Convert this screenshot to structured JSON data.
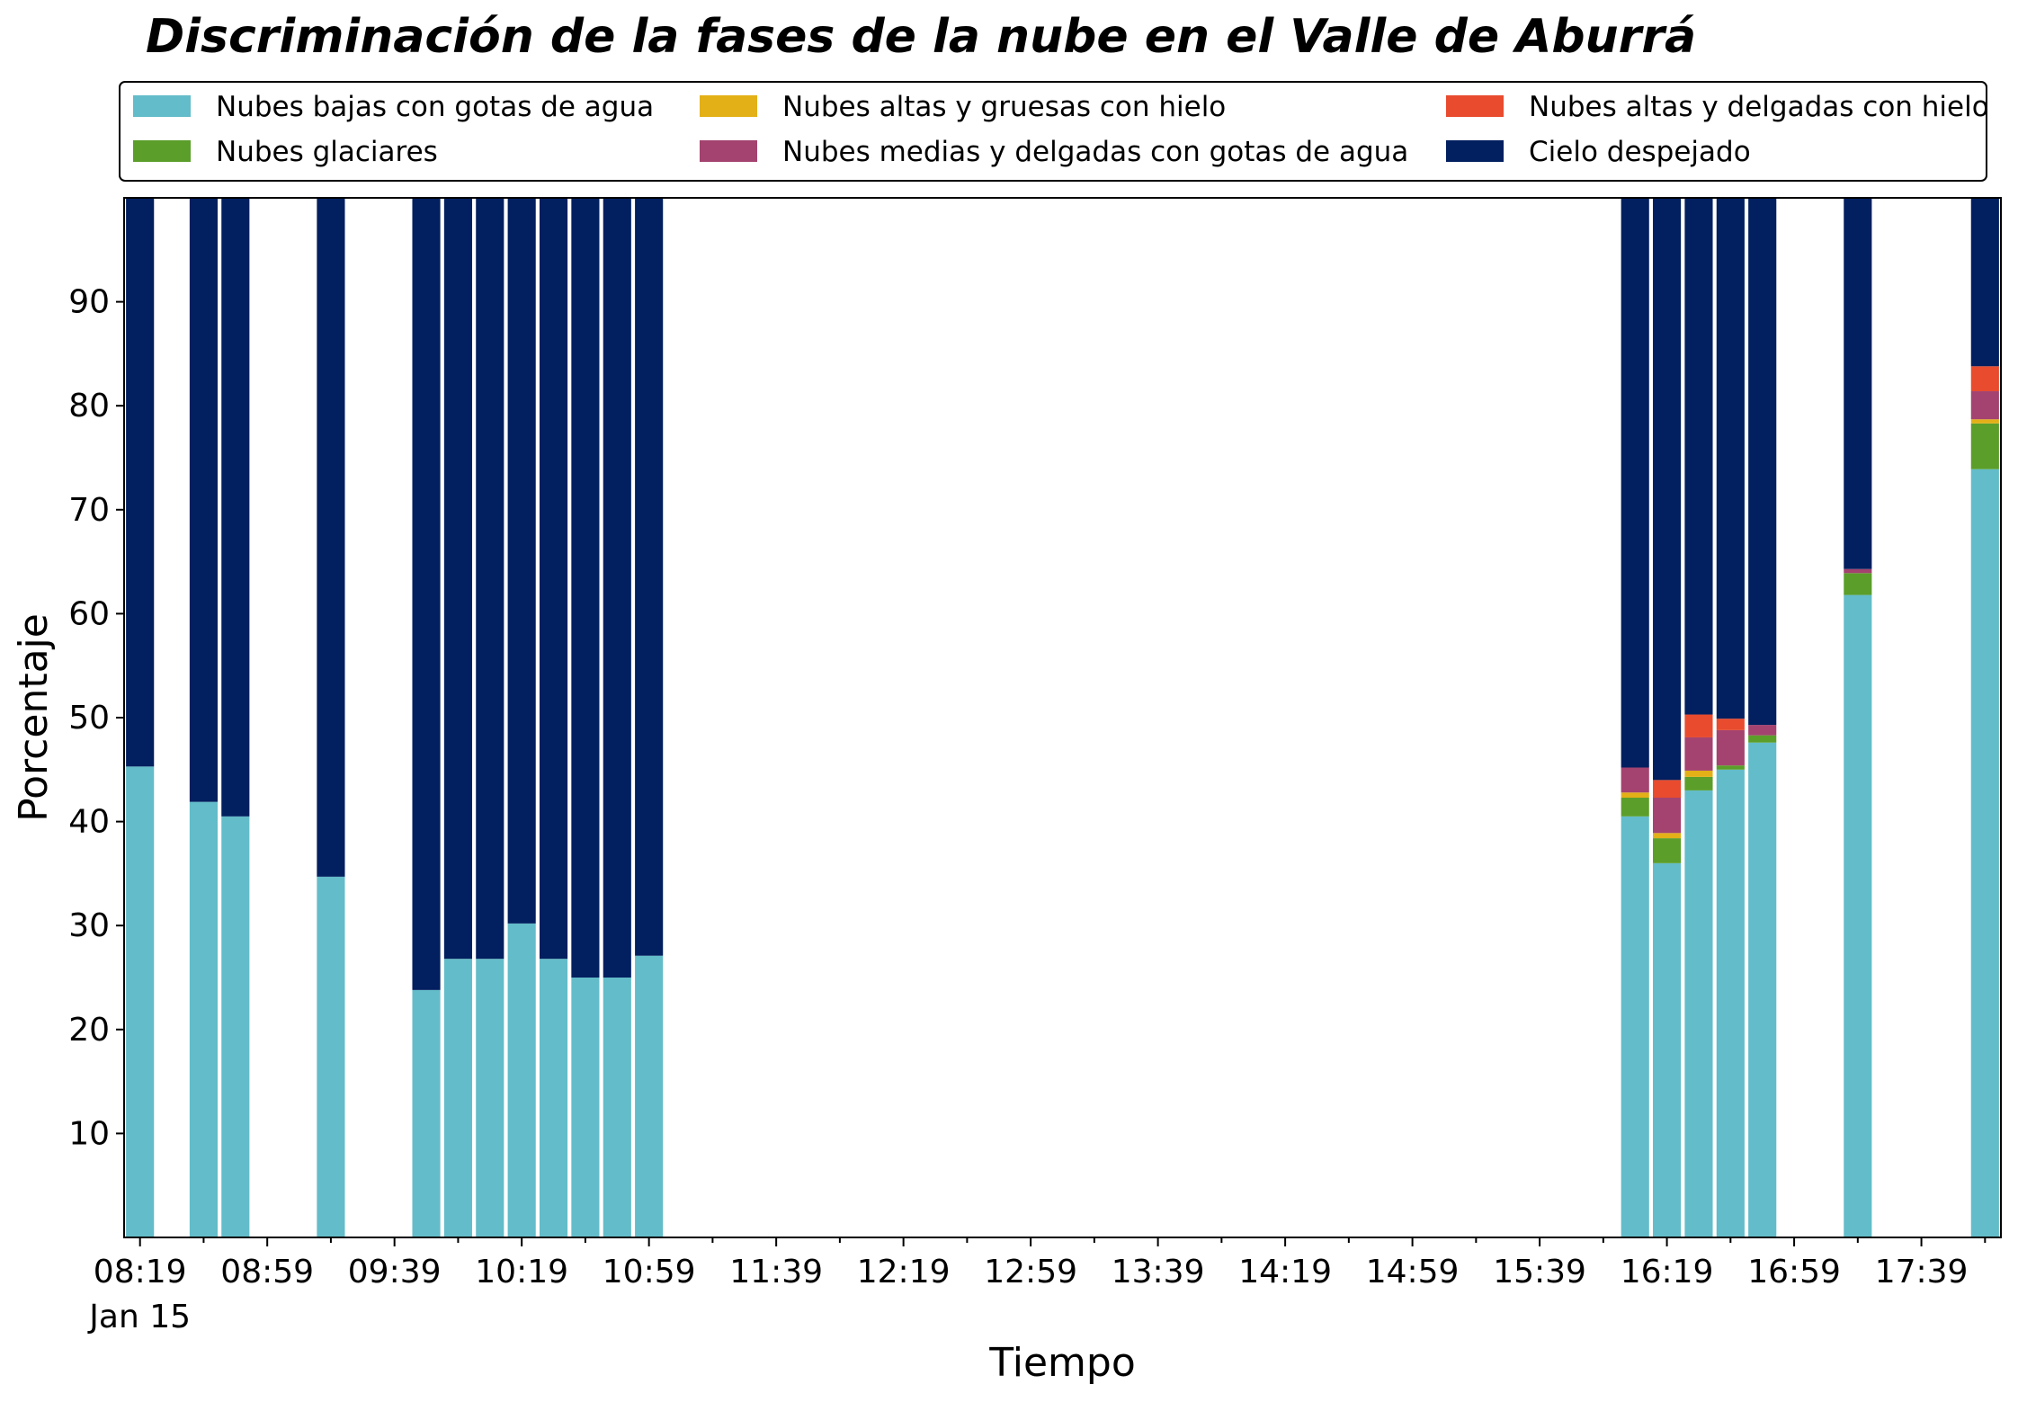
{
  "chart_data": {
    "type": "bar",
    "stacked": true,
    "title": "Discriminación de la fases de la nube en el Valle de Aburrá",
    "xlabel": "Tiempo",
    "ylabel": "Porcentaje",
    "ylim": [
      0,
      100
    ],
    "yticks": [
      10,
      20,
      30,
      40,
      50,
      60,
      70,
      80,
      90
    ],
    "xtick_labels": [
      "08:19",
      "08:59",
      "09:39",
      "10:19",
      "10:59",
      "11:39",
      "12:19",
      "12:59",
      "13:39",
      "14:19",
      "14:59",
      "15:39",
      "16:19",
      "16:59",
      "17:39"
    ],
    "date_label": "Jan 15",
    "legend_position": "top",
    "grid": false,
    "categories": [
      "08:19",
      "08:39",
      "08:49",
      "09:19",
      "09:49",
      "09:59",
      "10:09",
      "10:19",
      "10:29",
      "10:39",
      "10:49",
      "10:59",
      "16:09",
      "16:19",
      "16:29",
      "16:39",
      "16:49",
      "17:19",
      "17:59"
    ],
    "series": [
      {
        "name": "Nubes bajas con gotas de agua",
        "color": "#63bcc9",
        "values": [
          45.3,
          41.9,
          40.5,
          34.7,
          23.8,
          26.8,
          26.8,
          30.2,
          26.8,
          25.0,
          25.0,
          27.1,
          40.5,
          36.0,
          43.0,
          45.0,
          47.6,
          61.8,
          73.9
        ]
      },
      {
        "name": "Nubes glaciares",
        "color": "#5b9e2a",
        "values": [
          0,
          0,
          0,
          0,
          0,
          0,
          0,
          0,
          0,
          0,
          0,
          0,
          1.8,
          2.4,
          1.3,
          0.4,
          0.7,
          2.1,
          4.4
        ]
      },
      {
        "name": "Nubes altas y gruesas con hielo",
        "color": "#e3b017",
        "values": [
          0,
          0,
          0,
          0,
          0,
          0,
          0,
          0,
          0,
          0,
          0,
          0,
          0.5,
          0.5,
          0.6,
          0,
          0,
          0,
          0.4
        ]
      },
      {
        "name": "Nubes medias y delgadas con gotas de agua",
        "color": "#a4436f",
        "values": [
          0,
          0,
          0,
          0,
          0,
          0,
          0,
          0,
          0,
          0,
          0,
          0,
          2.4,
          3.4,
          3.2,
          3.4,
          1.0,
          0.4,
          2.7
        ]
      },
      {
        "name": "Nubes altas y delgadas con hielo",
        "color": "#e84b2e",
        "values": [
          0,
          0,
          0,
          0,
          0,
          0,
          0,
          0,
          0,
          0,
          0,
          0,
          0,
          1.7,
          2.2,
          1.1,
          0,
          0,
          2.4
        ]
      },
      {
        "name": "Cielo despejado",
        "color": "#021f5f",
        "values": [
          54.7,
          58.1,
          59.5,
          65.3,
          76.2,
          73.2,
          73.2,
          69.8,
          73.2,
          75.0,
          75.0,
          72.9,
          54.8,
          56.0,
          49.7,
          50.1,
          50.7,
          35.7,
          16.2
        ]
      }
    ]
  }
}
